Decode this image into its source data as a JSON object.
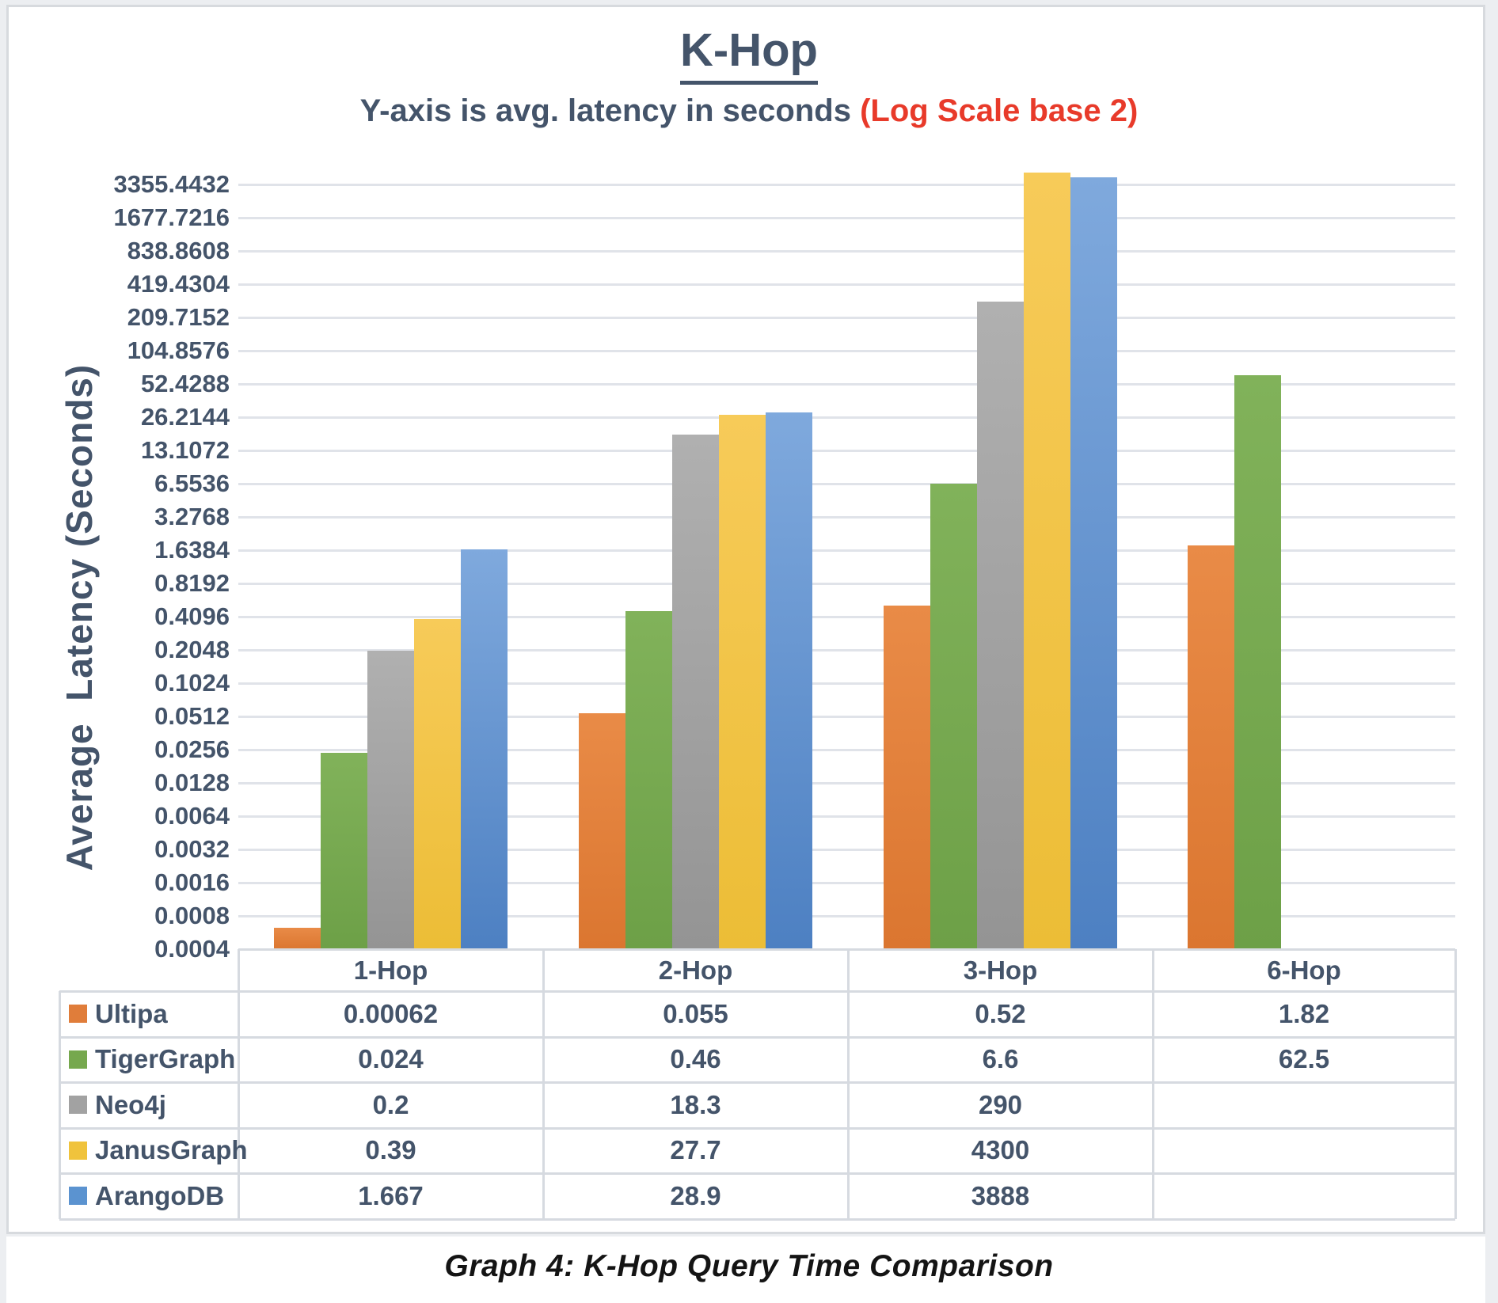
{
  "chart": {
    "title": "K-Hop",
    "subtitle": {
      "prefix": "Y-axis is avg. latency in seconds ",
      "highlight": "(Log Scale base 2)"
    },
    "y_axis_label": "Average  Latency (Seconds)"
  },
  "colors": {
    "text": "#44546a",
    "subtitle_highlight_red": "#e83a2a",
    "gridline": "#e0e3e9",
    "table_border": "#d6dae0",
    "series": {
      "Ultipa": "#e07d3a",
      "TigerGraph": "#76a84e",
      "Neo4j": "#a2a2a2",
      "JanusGraph": "#f0c33c",
      "ArangoDB": "#5b93d0"
    }
  },
  "chart_data": {
    "type": "bar",
    "title": "K-Hop",
    "subtitle": "Y-axis is avg. latency in seconds (Log Scale base 2)",
    "ylabel": "Average Latency (Seconds)",
    "y_scale": "log2",
    "grid": true,
    "legend_position": "left column of data table",
    "ylim": [
      0.0004,
      6710.8864
    ],
    "y_tick_labels": [
      "0.0004",
      "0.0008",
      "0.0016",
      "0.0032",
      "0.0064",
      "0.0128",
      "0.0256",
      "0.0512",
      "0.1024",
      "0.2048",
      "0.4096",
      "0.8192",
      "1.6384",
      "3.2768",
      "6.5536",
      "13.1072",
      "26.2144",
      "52.4288",
      "104.8576",
      "209.7152",
      "419.4304",
      "838.8608",
      "1677.7216",
      "3355.4432"
    ],
    "categories": [
      "1-Hop",
      "2-Hop",
      "3-Hop",
      "6-Hop"
    ],
    "series": [
      {
        "name": "Ultipa",
        "color": "#e07d3a",
        "color_light": "#e98b47",
        "color_dark": "#db7630",
        "values": [
          0.00062,
          0.055,
          0.52,
          1.82
        ],
        "labels": [
          "0.00062",
          "0.055",
          "0.52",
          "1.82"
        ]
      },
      {
        "name": "TigerGraph",
        "color": "#76a84e",
        "color_light": "#81b25a",
        "color_dark": "#6da047",
        "values": [
          0.024,
          0.46,
          6.6,
          62.5
        ],
        "labels": [
          "0.024",
          "0.46",
          "6.6",
          "62.5"
        ]
      },
      {
        "name": "Neo4j",
        "color": "#a2a2a2",
        "color_light": "#b0b0b0",
        "color_dark": "#949494",
        "values": [
          0.2,
          18.3,
          290,
          null
        ],
        "labels": [
          "0.2",
          "18.3",
          "290",
          ""
        ]
      },
      {
        "name": "JanusGraph",
        "color": "#f0c33c",
        "color_light": "#f7cb59",
        "color_dark": "#ecbd36",
        "values": [
          0.39,
          27.7,
          4300,
          null
        ],
        "labels": [
          "0.39",
          "27.7",
          "4300",
          ""
        ]
      },
      {
        "name": "ArangoDB",
        "color": "#5b93d0",
        "color_light": "#7fa9dd",
        "color_dark": "#4d80c2",
        "values": [
          1.667,
          28.9,
          3888,
          null
        ],
        "labels": [
          "1.667",
          "28.9",
          "3888",
          ""
        ]
      }
    ]
  },
  "caption": "Graph 4: K-Hop Query Time Comparison"
}
